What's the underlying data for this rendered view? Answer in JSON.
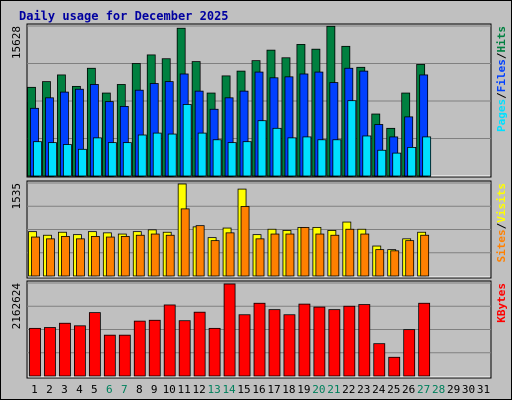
{
  "chart_data": {
    "type": "bar",
    "title": "Daily usage for December 2025",
    "categories": [
      "1",
      "2",
      "3",
      "4",
      "5",
      "6",
      "7",
      "8",
      "9",
      "10",
      "11",
      "12",
      "13",
      "14",
      "15",
      "16",
      "17",
      "18",
      "19",
      "20",
      "21",
      "22",
      "23",
      "24",
      "25",
      "26",
      "27",
      "28",
      "29",
      "30",
      "31"
    ],
    "weekend_days": [
      6,
      7,
      13,
      14,
      20,
      21,
      27,
      28
    ],
    "colors": {
      "title": "#0000a0",
      "hits": "#008040",
      "files": "#0040ff",
      "pages": "#00e0ff",
      "visits": "#ffff00",
      "sites": "#ff8000",
      "kbytes": "#ff0000",
      "weekday_label": "#000000",
      "weekend_label": "#00805c",
      "background": "#c0c0c0"
    },
    "panels": [
      {
        "name": "hits-files-pages",
        "max_label": "15628",
        "ymax": 15628,
        "legend": [
          "Pages",
          "/",
          "Files",
          "/",
          "Hits"
        ],
        "legend_colors": [
          "#00e0ff",
          "#000000",
          "#0040ff",
          "#000000",
          "#008040"
        ],
        "series": [
          {
            "name": "Hits",
            "values": [
              9300,
              9900,
              10600,
              9400,
              11300,
              8700,
              9600,
              11800,
              12700,
              12300,
              15500,
              12000,
              8700,
              10500,
              11000,
              12100,
              13200,
              12400,
              13800,
              13300,
              15700,
              13600,
              11400,
              6500,
              5000,
              8700,
              11700
            ]
          },
          {
            "name": "Files",
            "values": [
              7100,
              8200,
              8800,
              9100,
              9600,
              7800,
              7300,
              9000,
              9700,
              9900,
              10700,
              8900,
              7000,
              8200,
              8900,
              10900,
              10300,
              10400,
              10700,
              10900,
              9800,
              11300,
              11000,
              5400,
              4100,
              6200,
              10600
            ]
          },
          {
            "name": "Pages",
            "values": [
              3600,
              3500,
              3300,
              2800,
              4000,
              3500,
              3500,
              4300,
              4500,
              4400,
              7500,
              4500,
              3800,
              3500,
              3600,
              5800,
              5000,
              4000,
              4100,
              3800,
              3800,
              7900,
              4200,
              2700,
              2400,
              3000,
              4100
            ]
          }
        ]
      },
      {
        "name": "visits-sites",
        "max_label": "1535",
        "ymax": 1535,
        "legend": [
          "Sites",
          "/",
          "Visits"
        ],
        "legend_colors": [
          "#ff8000",
          "#000000",
          "#ffff00"
        ],
        "series": [
          {
            "name": "Visits",
            "values": [
              740,
              680,
              730,
              690,
              740,
              720,
              700,
              740,
              770,
              730,
              1535,
              820,
              640,
              800,
              1450,
              690,
              780,
              760,
              810,
              810,
              760,
              900,
              780,
              500,
              440,
              620,
              730
            ]
          },
          {
            "name": "Sites",
            "values": [
              650,
              620,
              660,
              620,
              660,
              650,
              660,
              680,
              700,
              680,
              1120,
              840,
              590,
              720,
              1160,
              620,
              700,
              700,
              810,
              700,
              680,
              780,
              700,
              440,
              420,
              590,
              680
            ]
          }
        ]
      },
      {
        "name": "kbytes",
        "max_label": "2162624",
        "ymax": 2162624,
        "legend": [
          "KBytes"
        ],
        "legend_colors": [
          "#ff0000"
        ],
        "series": [
          {
            "name": "KBytes",
            "values": [
              1120000,
              1140000,
              1240000,
              1180000,
              1490000,
              960000,
              960000,
              1290000,
              1310000,
              1670000,
              1300000,
              1500000,
              1120000,
              2162624,
              1440000,
              1710000,
              1560000,
              1440000,
              1690000,
              1620000,
              1560000,
              1640000,
              1680000,
              760000,
              440000,
              1090000,
              1710000
            ]
          }
        ]
      }
    ]
  }
}
